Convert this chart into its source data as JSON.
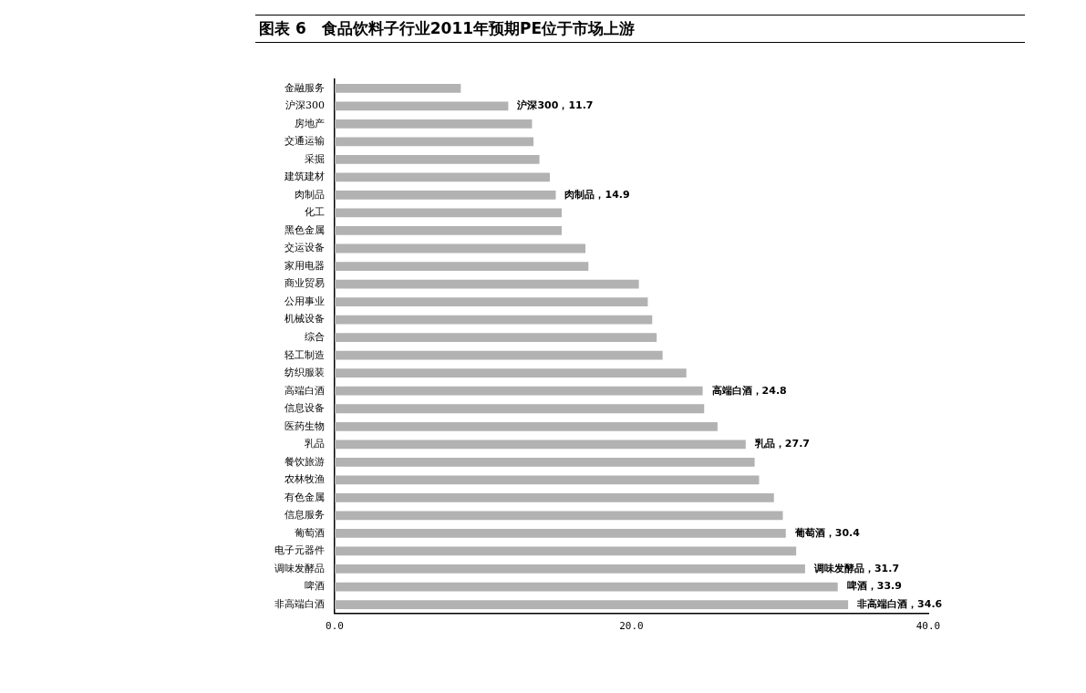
{
  "chart_data": {
    "type": "bar",
    "orientation": "horizontal",
    "title": "图表 6　食品饮料子行业2011年预期PE位于市场上游",
    "categories": [
      "金融服务",
      "沪深300",
      "房地产",
      "交通运输",
      "采掘",
      "建筑建材",
      "肉制品",
      "化工",
      "黑色金属",
      "交运设备",
      "家用电器",
      "商业贸易",
      "公用事业",
      "机械设备",
      "综合",
      "轻工制造",
      "纺织服装",
      "高端白酒",
      "信息设备",
      "医药生物",
      "乳品",
      "餐饮旅游",
      "农林牧渔",
      "有色金属",
      "信息服务",
      "葡萄酒",
      "电子元器件",
      "调味发酵品",
      "啤酒",
      "非高端白酒"
    ],
    "values": [
      8.5,
      11.7,
      13.3,
      13.4,
      13.8,
      14.5,
      14.9,
      15.3,
      15.3,
      16.9,
      17.1,
      20.5,
      21.1,
      21.4,
      21.7,
      22.1,
      23.7,
      24.8,
      24.9,
      25.8,
      27.7,
      28.3,
      28.6,
      29.6,
      30.2,
      30.4,
      31.1,
      31.7,
      33.9,
      34.6
    ],
    "value_labels": [
      null,
      "沪深300，11.7",
      null,
      null,
      null,
      null,
      "肉制品，14.9",
      null,
      null,
      null,
      null,
      null,
      null,
      null,
      null,
      null,
      null,
      "高端白酒，24.8",
      null,
      null,
      "乳品，27.7",
      null,
      null,
      null,
      null,
      "葡萄酒，30.4",
      null,
      "调味发酵品，31.7",
      "啤酒，33.9",
      "非高端白酒，34.6"
    ],
    "color": "#b2b2b2",
    "xlim": [
      0,
      40
    ],
    "xticks": [
      {
        "value": 0,
        "label": "0.0"
      },
      {
        "value": 20,
        "label": "20.0"
      },
      {
        "value": 40,
        "label": "40.0"
      }
    ],
    "grid": false,
    "legend": false
  }
}
